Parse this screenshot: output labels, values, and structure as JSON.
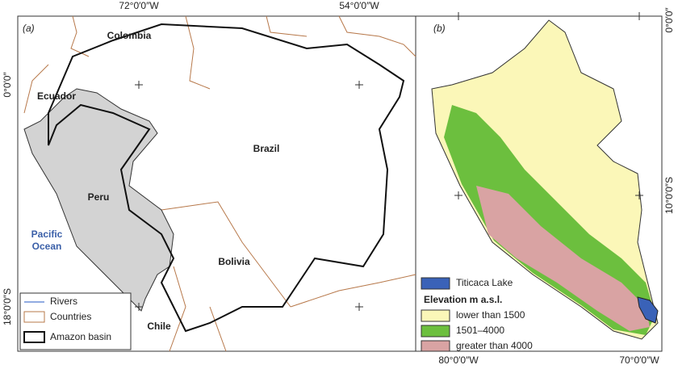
{
  "coordinates": {
    "top": [
      "72°0′0″W",
      "54°0′0″W"
    ],
    "left": [
      "0°0′0″",
      "18°0′0″S"
    ],
    "right": [
      "0°0′0″",
      "10°0′0″S"
    ],
    "bottom": [
      "80°0′0″W",
      "70°0′0″W"
    ]
  },
  "panel_a": {
    "label": "(a)",
    "places": {
      "colombia": "Colombia",
      "ecuador": "Ecuador",
      "peru": "Peru",
      "brazil": "Brazil",
      "bolivia": "Bolivia",
      "chile": "Chile"
    },
    "ocean": [
      "Pacific",
      "Ocean"
    ],
    "legend": [
      "Rivers",
      "Countries",
      "Amazon basin"
    ]
  },
  "panel_b": {
    "label": "(b)",
    "lake": "Titicaca Lake",
    "legend_title": "Elevation m a.s.l.",
    "legend": [
      "lower than 1500",
      "1501–4000",
      "greater than 4000"
    ]
  }
}
